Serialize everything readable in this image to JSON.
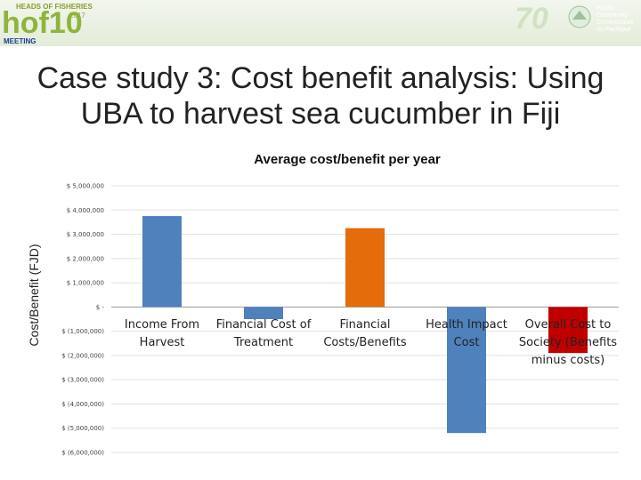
{
  "banner": {
    "left_logo": {
      "line1": "HEADS OF FISHERIES",
      "year": "2017",
      "wordmark": "hof10",
      "meeting": "MEETING"
    },
    "right_logo": {
      "anniversary": "70",
      "org_en": [
        "Pacific",
        "Community"
      ],
      "org_fr": [
        "Communauté",
        "du Pacifique"
      ]
    }
  },
  "slide": {
    "title_line1": "Case study 3: Cost benefit analysis: Using",
    "title_line2": "UBA to harvest sea cucumber in Fiji"
  },
  "chart_data": {
    "type": "bar",
    "title": "Average cost/benefit per year",
    "ylabel": "Cost/Benefit (FJD)",
    "xlabel": "",
    "ylim": [
      -6000000,
      5000000
    ],
    "yticks": [
      {
        "value": 5000000,
        "label": "$ 5,000,000"
      },
      {
        "value": 4000000,
        "label": "$ 4,000,000"
      },
      {
        "value": 3000000,
        "label": "$ 3,000,000"
      },
      {
        "value": 2000000,
        "label": "$ 2,000,000"
      },
      {
        "value": 1000000,
        "label": "$ 1,000,000"
      },
      {
        "value": 0,
        "label": "$ -"
      },
      {
        "value": -1000000,
        "label": "$ (1,000,000)"
      },
      {
        "value": -2000000,
        "label": "$ (2,000,000)"
      },
      {
        "value": -3000000,
        "label": "$ (3,000,000)"
      },
      {
        "value": -4000000,
        "label": "$ (4,000,000)"
      },
      {
        "value": -5000000,
        "label": "$ (5,000,000)"
      },
      {
        "value": -6000000,
        "label": "$ (6,000,000)"
      }
    ],
    "categories": [
      [
        "Income From",
        "Harvest"
      ],
      [
        "Financial Cost of",
        "Treatment"
      ],
      [
        "Financial",
        "Costs/Benefits"
      ],
      [
        "Health Impact",
        "Cost"
      ],
      [
        "Overall Cost to",
        "Society (Benefits",
        "minus costs)"
      ]
    ],
    "values": [
      3750000,
      -500000,
      3250000,
      -5200000,
      -1900000
    ],
    "colors": [
      "#4f81bd",
      "#4f81bd",
      "#e46c0a",
      "#4f81bd",
      "#c00000"
    ],
    "grid": true,
    "legend": "none"
  }
}
